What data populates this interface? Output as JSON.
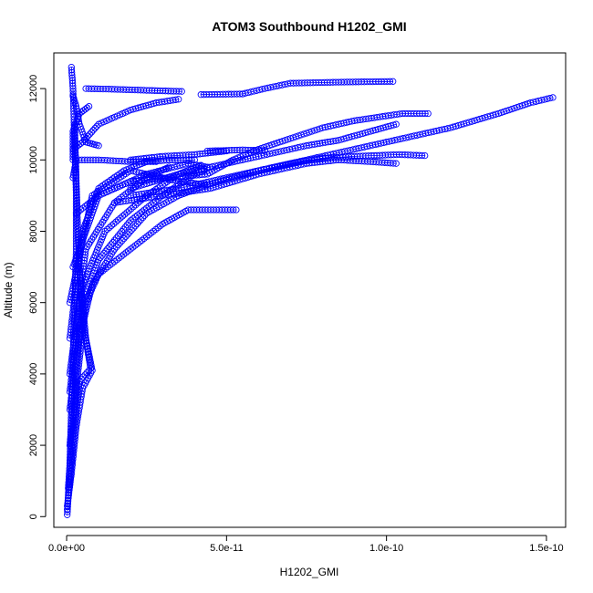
{
  "chart_data": {
    "type": "scatter",
    "title": "ATOM3 Southbound H1202_GMI",
    "xlabel": "H1202_GMI",
    "ylabel": "Altitude (m)",
    "xlim": [
      -4e-12,
      1.56e-10
    ],
    "ylim": [
      -300,
      13000
    ],
    "x_ticks": [
      {
        "value": 0,
        "label": "0.0e+00"
      },
      {
        "value": 5e-11,
        "label": "5.0e-11"
      },
      {
        "value": 1e-10,
        "label": "1.0e-10"
      },
      {
        "value": 1.5e-10,
        "label": "1.5e-10"
      }
    ],
    "y_ticks": [
      {
        "value": 0,
        "label": "0"
      },
      {
        "value": 2000,
        "label": "2000"
      },
      {
        "value": 4000,
        "label": "4000"
      },
      {
        "value": 6000,
        "label": "6000"
      },
      {
        "value": 8000,
        "label": "8000"
      },
      {
        "value": 10000,
        "label": "10000"
      },
      {
        "value": 12000,
        "label": "12000"
      }
    ],
    "grid": false,
    "legend": "none",
    "marker": "open-circle",
    "color": "#0000ff",
    "series": [
      {
        "points": [
          [
            2e-13,
            50
          ],
          [
            5e-13,
            600
          ],
          [
            1e-12,
            1500
          ],
          [
            1.5e-12,
            3000
          ],
          [
            2e-12,
            4500
          ],
          [
            2.5e-12,
            6000
          ],
          [
            3e-12,
            7500
          ],
          [
            3e-12,
            9000
          ],
          [
            2.5e-12,
            10500
          ],
          [
            2e-12,
            12000
          ],
          [
            1.5e-12,
            12600
          ]
        ]
      },
      {
        "points": [
          [
            2e-13,
            300
          ],
          [
            1.5e-12,
            1200
          ],
          [
            3e-12,
            2500
          ],
          [
            5e-12,
            3600
          ],
          [
            8e-12,
            4100
          ],
          [
            6e-12,
            5000
          ],
          [
            5e-12,
            6000
          ],
          [
            4e-12,
            7000
          ],
          [
            3.5e-12,
            8000
          ],
          [
            3e-12,
            9500
          ],
          [
            2.5e-12,
            11000
          ]
        ]
      },
      {
        "points": [
          [
            2e-13,
            200
          ],
          [
            2e-12,
            2000
          ],
          [
            4e-12,
            3800
          ],
          [
            7.5e-12,
            4150
          ],
          [
            5e-12,
            5500
          ],
          [
            4e-12,
            7000
          ]
        ]
      },
      {
        "points": [
          [
            5e-13,
            800
          ],
          [
            2e-12,
            2600
          ],
          [
            3.5e-12,
            4000
          ],
          [
            6e-12,
            6000
          ],
          [
            1e-11,
            6800
          ],
          [
            2e-11,
            7500
          ],
          [
            3e-11,
            8200
          ],
          [
            3.8e-11,
            8600
          ],
          [
            5.3e-11,
            8600
          ]
        ]
      },
      {
        "points": [
          [
            1e-12,
            2000
          ],
          [
            4e-12,
            5000
          ],
          [
            8e-12,
            6500
          ],
          [
            1.5e-11,
            7500
          ],
          [
            2.5e-11,
            8500
          ],
          [
            3.5e-11,
            9000
          ],
          [
            4.4e-11,
            9300
          ]
        ]
      },
      {
        "points": [
          [
            1e-12,
            3000
          ],
          [
            5e-12,
            6000
          ],
          [
            1e-11,
            7200
          ],
          [
            2e-11,
            8300
          ],
          [
            3e-11,
            9000
          ],
          [
            4e-11,
            9600
          ],
          [
            4.3e-11,
            9700
          ]
        ]
      },
      {
        "points": [
          [
            1e-12,
            3500
          ],
          [
            5e-12,
            6500
          ],
          [
            1.2e-11,
            8000
          ],
          [
            2.5e-11,
            9000
          ],
          [
            3.5e-11,
            9600
          ],
          [
            4.2e-11,
            9850
          ]
        ]
      },
      {
        "points": [
          [
            1e-12,
            4000
          ],
          [
            6e-12,
            7500
          ],
          [
            1.5e-11,
            8800
          ],
          [
            2.5e-11,
            9500
          ],
          [
            3.2e-11,
            9800
          ]
        ]
      },
      {
        "points": [
          [
            1e-12,
            5000
          ],
          [
            5e-12,
            8000
          ],
          [
            1e-11,
            9200
          ],
          [
            1.8e-11,
            9700
          ],
          [
            2.5e-11,
            9950
          ],
          [
            3.3e-11,
            10000
          ],
          [
            4e-11,
            10000
          ]
        ]
      },
      {
        "points": [
          [
            2e-12,
            9500
          ],
          [
            3e-12,
            10000
          ],
          [
            1e-11,
            10000
          ],
          [
            2e-11,
            9950
          ],
          [
            2.8e-11,
            9950
          ]
        ]
      },
      {
        "points": [
          [
            1e-12,
            6000
          ],
          [
            8e-12,
            9000
          ],
          [
            2e-11,
            9700
          ],
          [
            3.5e-11,
            9400
          ],
          [
            4.4e-11,
            9300
          ]
        ]
      },
      {
        "points": [
          [
            2e-12,
            7000
          ],
          [
            1e-11,
            9000
          ],
          [
            2.5e-11,
            9600
          ],
          [
            3.8e-11,
            9900
          ],
          [
            4.4e-11,
            9800
          ]
        ]
      },
      {
        "points": [
          [
            2e-12,
            10000
          ],
          [
            2e-12,
            10800
          ],
          [
            4e-12,
            11300
          ],
          [
            7e-12,
            11500
          ]
        ]
      },
      {
        "points": [
          [
            2e-12,
            10300
          ],
          [
            5e-12,
            10500
          ],
          [
            1e-11,
            11000
          ],
          [
            1.5e-11,
            11200
          ],
          [
            2e-11,
            11400
          ],
          [
            2.8e-11,
            11600
          ],
          [
            3.5e-11,
            11700
          ]
        ]
      },
      {
        "points": [
          [
            6e-12,
            12000
          ],
          [
            1.5e-11,
            11980
          ],
          [
            2.5e-11,
            11950
          ],
          [
            3.6e-11,
            11920
          ]
        ]
      },
      {
        "points": [
          [
            4.2e-11,
            11830
          ],
          [
            4.8e-11,
            11840
          ],
          [
            5.5e-11,
            11850
          ]
        ]
      },
      {
        "points": [
          [
            5.5e-11,
            11850
          ],
          [
            6.2e-11,
            12000
          ],
          [
            7e-11,
            12150
          ],
          [
            8.5e-11,
            12180
          ],
          [
            1.02e-10,
            12200
          ]
        ]
      },
      {
        "points": [
          [
            3e-12,
            8500
          ],
          [
            1e-11,
            9000
          ],
          [
            2e-11,
            9400
          ],
          [
            3.2e-11,
            9500
          ],
          [
            4.4e-11,
            9600
          ],
          [
            5.2e-11,
            10000
          ],
          [
            6e-11,
            10300
          ],
          [
            7e-11,
            10600
          ],
          [
            8e-11,
            10900
          ],
          [
            9e-11,
            11100
          ],
          [
            1.05e-10,
            11300
          ],
          [
            1.13e-10,
            11300
          ]
        ]
      },
      {
        "points": [
          [
            2e-11,
            9200
          ],
          [
            3.5e-11,
            9600
          ],
          [
            5e-11,
            9900
          ],
          [
            6e-11,
            10100
          ],
          [
            7.5e-11,
            10400
          ],
          [
            8.5e-11,
            10550
          ],
          [
            9.5e-11,
            10800
          ],
          [
            1.03e-10,
            11000
          ]
        ]
      },
      {
        "points": [
          [
            2e-11,
            9000
          ],
          [
            3.5e-11,
            9200
          ],
          [
            5e-11,
            9500
          ],
          [
            6e-11,
            9700
          ],
          [
            7e-11,
            9900
          ],
          [
            8e-11,
            10050
          ],
          [
            9e-11,
            10100
          ],
          [
            1.04e-10,
            10150
          ],
          [
            1.12e-10,
            10120
          ]
        ]
      },
      {
        "points": [
          [
            1.5e-11,
            8800
          ],
          [
            3e-11,
            9000
          ],
          [
            4.5e-11,
            9200
          ],
          [
            6e-11,
            9600
          ],
          [
            7.5e-11,
            9900
          ],
          [
            8.5e-11,
            10000
          ],
          [
            9.5e-11,
            9950
          ],
          [
            1.03e-10,
            9900
          ]
        ]
      },
      {
        "points": [
          [
            4.4e-11,
            9300
          ],
          [
            6e-11,
            9700
          ],
          [
            8e-11,
            10100
          ],
          [
            1e-10,
            10500
          ],
          [
            1.2e-10,
            10900
          ],
          [
            1.35e-10,
            11300
          ],
          [
            1.45e-10,
            11600
          ],
          [
            1.52e-10,
            11750
          ]
        ]
      },
      {
        "points": [
          [
            4.4e-11,
            10250
          ],
          [
            5.5e-11,
            10280
          ],
          [
            6.2e-11,
            10260
          ]
        ]
      },
      {
        "points": [
          [
            2e-11,
            10000
          ],
          [
            3e-11,
            10100
          ],
          [
            4e-11,
            10150
          ],
          [
            5e-11,
            10250
          ]
        ]
      },
      {
        "points": [
          [
            2e-12,
            11800
          ],
          [
            3e-12,
            11500
          ],
          [
            4e-12,
            11000
          ],
          [
            6e-12,
            10500
          ],
          [
            8e-12,
            10450
          ],
          [
            1e-11,
            10400
          ]
        ]
      }
    ]
  }
}
